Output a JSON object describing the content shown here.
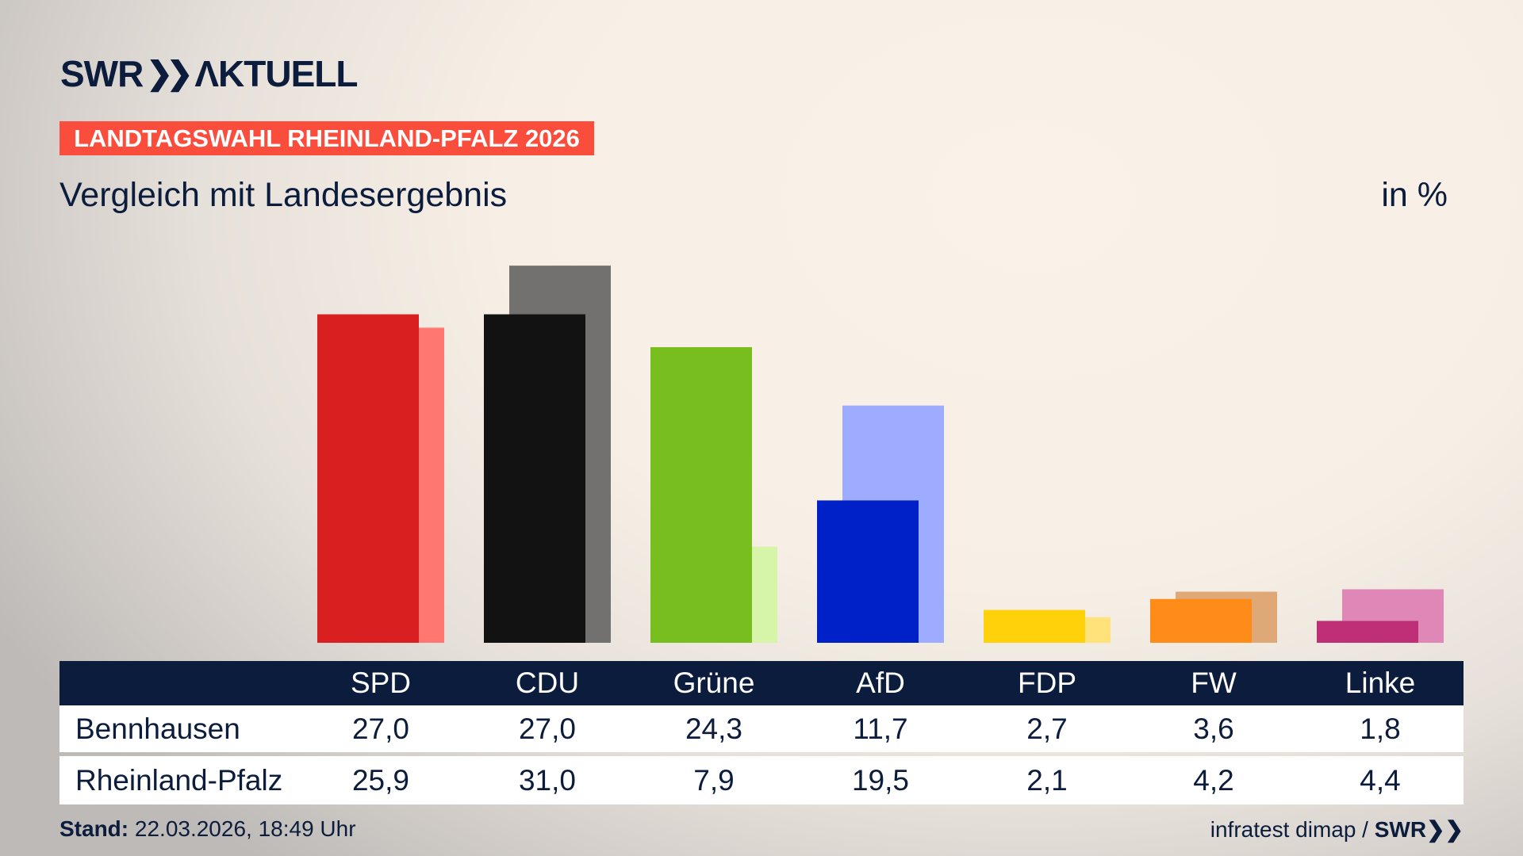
{
  "header": {
    "logo": "SWR AKTUELL",
    "badge": "LANDTAGSWAHL RHEINLAND-PFALZ 2026",
    "subtitle": "Vergleich mit Landesergebnis",
    "unit": "in %"
  },
  "chart_data": {
    "type": "bar",
    "categories": [
      "SPD",
      "CDU",
      "Grüne",
      "AfD",
      "FDP",
      "FW",
      "Linke"
    ],
    "series": [
      {
        "name": "Bennhausen",
        "values": [
          27.0,
          27.0,
          24.3,
          11.7,
          2.7,
          3.6,
          1.8
        ],
        "colors": [
          "#d91f1f",
          "#121212",
          "#78be1e",
          "#0021c8",
          "#ffd10a",
          "#ff8c19",
          "#be2f77"
        ]
      },
      {
        "name": "Rheinland-Pfalz",
        "values": [
          25.9,
          31.0,
          7.9,
          19.5,
          2.1,
          4.2,
          4.4
        ],
        "colors": [
          "#ff7770",
          "#737170",
          "#d6f5a8",
          "#9eacff",
          "#ffe27a",
          "#dfa877",
          "#df88b8"
        ]
      }
    ],
    "ylim": [
      0,
      31
    ]
  },
  "table": {
    "headers": [
      "SPD",
      "CDU",
      "Grüne",
      "AfD",
      "FDP",
      "FW",
      "Linke"
    ],
    "rows": [
      {
        "label": "Bennhausen",
        "values": [
          "27,0",
          "27,0",
          "24,3",
          "11,7",
          "2,7",
          "3,6",
          "1,8"
        ]
      },
      {
        "label": "Rheinland-Pfalz",
        "values": [
          "25,9",
          "31,0",
          "7,9",
          "19,5",
          "2,1",
          "4,2",
          "4,4"
        ]
      }
    ]
  },
  "footer": {
    "stand_label": "Stand:",
    "stand_value": "22.03.2026, 18:49 Uhr",
    "source": "infratest dimap /",
    "source_brand": "SWR"
  },
  "colors": {
    "navy": "#0b1c3c",
    "badge": "#fa4d3c"
  }
}
